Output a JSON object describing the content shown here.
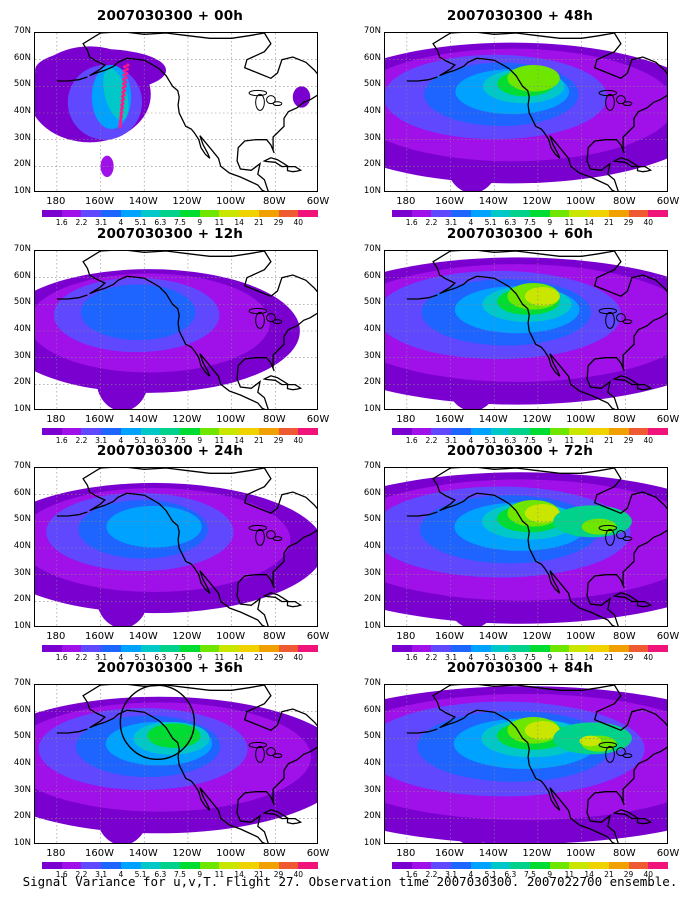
{
  "figure": {
    "caption": "Signal Variance for u,v,T. Flight 27. Observation time 2007030300. 2007022700 ensemble."
  },
  "panels": [
    {
      "title": "2007030300 + 00h",
      "intensity": 0.0
    },
    {
      "title": "2007030300 + 48h",
      "intensity": 0.55
    },
    {
      "title": "2007030300 + 12h",
      "intensity": 0.15
    },
    {
      "title": "2007030300 + 60h",
      "intensity": 0.7
    },
    {
      "title": "2007030300 + 24h",
      "intensity": 0.3
    },
    {
      "title": "2007030300 + 72h",
      "intensity": 0.8
    },
    {
      "title": "2007030300 + 36h",
      "intensity": 0.45
    },
    {
      "title": "2007030300 + 84h",
      "intensity": 0.95
    }
  ],
  "axes": {
    "lat_labels": [
      "70N",
      "60N",
      "50N",
      "40N",
      "30N",
      "20N",
      "10N"
    ],
    "lon_labels": [
      "180",
      "160W",
      "140W",
      "120W",
      "100W",
      "80W",
      "60W"
    ],
    "lat_range": [
      10,
      70
    ],
    "lon_range": [
      -190,
      -60
    ]
  },
  "colorbar": {
    "labels": [
      "1.6",
      "2.2",
      "3.1",
      "4",
      "5.1",
      "6.3",
      "7.5",
      "9",
      "11",
      "14",
      "21",
      "29",
      "40"
    ],
    "colors": [
      "#7a00d0",
      "#a010e8",
      "#6048ff",
      "#1e64ff",
      "#00a2ff",
      "#00c8c8",
      "#00d28c",
      "#00dc32",
      "#6ee600",
      "#c8e600",
      "#f0d200",
      "#f0a000",
      "#f05a32",
      "#f0147a"
    ]
  },
  "annotations": {
    "flight_track_panel": 0,
    "circle_panel": 6
  }
}
